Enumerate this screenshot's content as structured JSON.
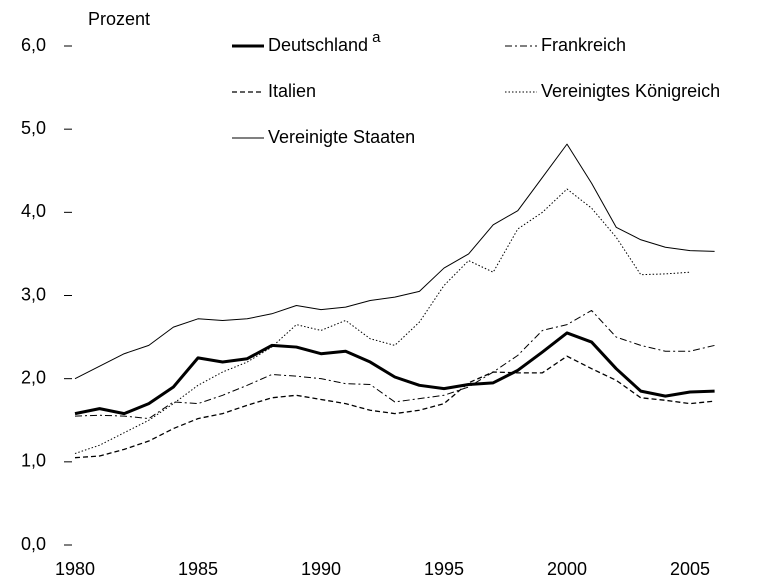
{
  "chart_data": {
    "type": "line",
    "y_label": "Prozent",
    "x": [
      1980,
      1981,
      1982,
      1983,
      1984,
      1985,
      1986,
      1987,
      1988,
      1989,
      1990,
      1991,
      1992,
      1993,
      1994,
      1995,
      1996,
      1997,
      1998,
      1999,
      2000,
      2001,
      2002,
      2003,
      2004,
      2005,
      2006
    ],
    "series": [
      {
        "name": "Deutschland",
        "note": "a",
        "color": "#000000",
        "dash": "solid",
        "width": 3,
        "values": [
          1.58,
          1.64,
          1.58,
          1.7,
          1.9,
          2.25,
          2.2,
          2.24,
          2.4,
          2.38,
          2.3,
          2.33,
          2.2,
          2.02,
          1.92,
          1.88,
          1.93,
          1.95,
          2.1,
          2.32,
          2.55,
          2.44,
          2.12,
          1.85,
          1.79,
          1.84,
          1.85
        ]
      },
      {
        "name": "Frankreich",
        "color": "#000000",
        "dash": "dashdot",
        "width": 1,
        "values": [
          1.55,
          1.56,
          1.55,
          1.52,
          1.72,
          1.7,
          1.8,
          1.92,
          2.05,
          2.03,
          2.0,
          1.94,
          1.93,
          1.72,
          1.76,
          1.8,
          1.9,
          2.08,
          2.28,
          2.58,
          2.65,
          2.82,
          2.5,
          2.4,
          2.33,
          2.33,
          2.4
        ]
      },
      {
        "name": "Italien",
        "color": "#000000",
        "dash": "dashed",
        "width": 1.3,
        "values": [
          1.05,
          1.07,
          1.15,
          1.25,
          1.4,
          1.52,
          1.58,
          1.68,
          1.77,
          1.8,
          1.75,
          1.7,
          1.62,
          1.58,
          1.62,
          1.7,
          1.95,
          2.08,
          2.07,
          2.07,
          2.27,
          2.12,
          1.98,
          1.77,
          1.74,
          1.7,
          1.73
        ]
      },
      {
        "name": "Vereinigtes Königreich",
        "color": "#000000",
        "dash": "dotted",
        "width": 1,
        "values": [
          1.1,
          1.2,
          1.35,
          1.5,
          1.7,
          1.92,
          2.08,
          2.2,
          2.38,
          2.65,
          2.58,
          2.7,
          2.48,
          2.4,
          2.68,
          3.12,
          3.42,
          3.28,
          3.8,
          4.0,
          4.28,
          4.05,
          3.7,
          3.25,
          3.26,
          3.28,
          null
        ]
      },
      {
        "name": "Vereinigte Staaten",
        "color": "#000000",
        "dash": "solid",
        "width": 1,
        "values": [
          2.0,
          2.15,
          2.3,
          2.4,
          2.62,
          2.72,
          2.7,
          2.72,
          2.78,
          2.88,
          2.83,
          2.86,
          2.94,
          2.98,
          3.05,
          3.33,
          3.5,
          3.85,
          4.02,
          4.42,
          4.82,
          4.35,
          3.82,
          3.67,
          3.58,
          3.54,
          3.53
        ]
      }
    ],
    "xlim": [
      1980,
      2006
    ],
    "xticks": [
      1980,
      1985,
      1990,
      1995,
      2000,
      2005
    ],
    "ylim": [
      0,
      6
    ],
    "yticks": [
      {
        "value": 0,
        "label": "0,0"
      },
      {
        "value": 1,
        "label": "1,0"
      },
      {
        "value": 2,
        "label": "2,0"
      },
      {
        "value": 3,
        "label": "3,0"
      },
      {
        "value": 4,
        "label": "4,0"
      },
      {
        "value": 5,
        "label": "5,0"
      },
      {
        "value": 6,
        "label": "6,0"
      }
    ],
    "grid": false
  }
}
